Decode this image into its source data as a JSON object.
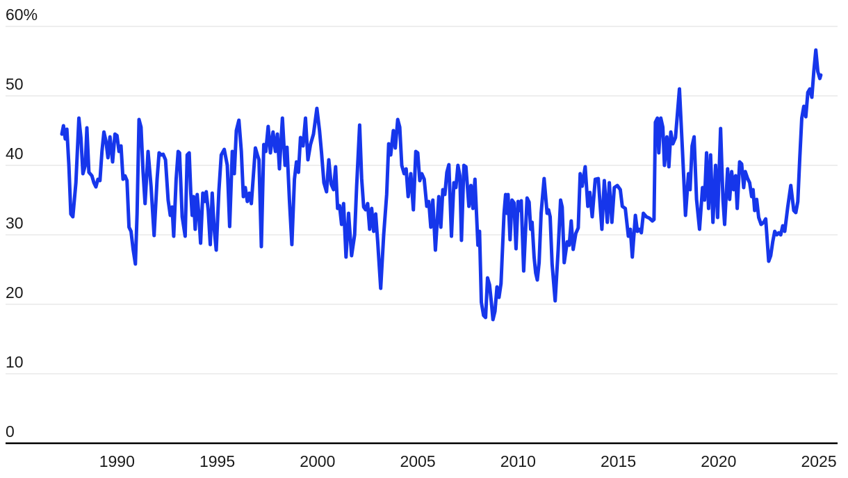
{
  "chart_data": {
    "type": "line",
    "title": "",
    "xlabel": "",
    "ylabel": "",
    "unit": "%",
    "grid": true,
    "legend": false,
    "ylim": [
      0,
      60
    ],
    "y_ticks": [
      0,
      10,
      20,
      30,
      40,
      50,
      60
    ],
    "y_tick_labels": [
      "0",
      "10",
      "20",
      "30",
      "40",
      "50",
      "60%"
    ],
    "x_ticks": [
      1990,
      1995,
      2000,
      2005,
      2010,
      2015,
      2020,
      2025
    ],
    "x_tick_labels": [
      "1990",
      "1995",
      "2000",
      "2005",
      "2010",
      "2015",
      "2020",
      "2025"
    ],
    "colors": {
      "line": "#1636EB",
      "grid": "#E4E4E4",
      "axis": "#000000",
      "labels": "#1A1A1A",
      "background": "#FFFFFF"
    },
    "points": [
      [
        1987.25,
        44.5
      ],
      [
        1987.33,
        45.7
      ],
      [
        1987.42,
        43.8
      ],
      [
        1987.5,
        45.2
      ],
      [
        1987.6,
        40.0
      ],
      [
        1987.7,
        33.0
      ],
      [
        1987.8,
        32.6
      ],
      [
        1987.95,
        37.5
      ],
      [
        1988.1,
        46.8
      ],
      [
        1988.2,
        44.0
      ],
      [
        1988.3,
        38.8
      ],
      [
        1988.42,
        40.0
      ],
      [
        1988.5,
        45.4
      ],
      [
        1988.6,
        39.0
      ],
      [
        1988.75,
        38.5
      ],
      [
        1988.85,
        37.5
      ],
      [
        1988.95,
        36.9
      ],
      [
        1989.05,
        38.0
      ],
      [
        1989.15,
        37.8
      ],
      [
        1989.25,
        42.0
      ],
      [
        1989.35,
        44.8
      ],
      [
        1989.45,
        43.5
      ],
      [
        1989.55,
        41.1
      ],
      [
        1989.65,
        44.1
      ],
      [
        1989.78,
        40.5
      ],
      [
        1989.9,
        44.5
      ],
      [
        1990.0,
        44.3
      ],
      [
        1990.1,
        42.0
      ],
      [
        1990.2,
        42.8
      ],
      [
        1990.3,
        38.0
      ],
      [
        1990.4,
        38.5
      ],
      [
        1990.5,
        37.8
      ],
      [
        1990.6,
        31.1
      ],
      [
        1990.7,
        30.5
      ],
      [
        1990.8,
        28.0
      ],
      [
        1990.92,
        25.8
      ],
      [
        1991.0,
        33.0
      ],
      [
        1991.1,
        46.6
      ],
      [
        1991.2,
        45.5
      ],
      [
        1991.3,
        39.1
      ],
      [
        1991.4,
        34.5
      ],
      [
        1991.55,
        42.0
      ],
      [
        1991.7,
        37.0
      ],
      [
        1991.85,
        29.9
      ],
      [
        1992.0,
        38.0
      ],
      [
        1992.1,
        41.8
      ],
      [
        1992.2,
        41.5
      ],
      [
        1992.3,
        41.6
      ],
      [
        1992.42,
        40.8
      ],
      [
        1992.55,
        35.0
      ],
      [
        1992.66,
        32.8
      ],
      [
        1992.75,
        34.0
      ],
      [
        1992.83,
        29.8
      ],
      [
        1992.95,
        38.0
      ],
      [
        1993.05,
        42.0
      ],
      [
        1993.12,
        41.8
      ],
      [
        1993.25,
        32.6
      ],
      [
        1993.4,
        29.8
      ],
      [
        1993.5,
        41.5
      ],
      [
        1993.6,
        41.8
      ],
      [
        1993.68,
        36.0
      ],
      [
        1993.75,
        32.8
      ],
      [
        1993.82,
        35.5
      ],
      [
        1993.9,
        30.8
      ],
      [
        1994.0,
        35.8
      ],
      [
        1994.08,
        33.0
      ],
      [
        1994.17,
        28.8
      ],
      [
        1994.28,
        36.0
      ],
      [
        1994.38,
        34.8
      ],
      [
        1994.45,
        36.2
      ],
      [
        1994.55,
        33.5
      ],
      [
        1994.65,
        28.6
      ],
      [
        1994.75,
        36.0
      ],
      [
        1994.85,
        30.8
      ],
      [
        1994.95,
        27.8
      ],
      [
        1995.08,
        36.3
      ],
      [
        1995.2,
        41.5
      ],
      [
        1995.35,
        42.3
      ],
      [
        1995.5,
        40.0
      ],
      [
        1995.62,
        31.2
      ],
      [
        1995.75,
        42.0
      ],
      [
        1995.85,
        38.8
      ],
      [
        1995.95,
        45.0
      ],
      [
        1996.08,
        46.5
      ],
      [
        1996.2,
        42.0
      ],
      [
        1996.3,
        35.5
      ],
      [
        1996.4,
        36.8
      ],
      [
        1996.5,
        34.8
      ],
      [
        1996.6,
        36.0
      ],
      [
        1996.7,
        34.5
      ],
      [
        1996.8,
        38.5
      ],
      [
        1996.9,
        42.5
      ],
      [
        1997.0,
        41.5
      ],
      [
        1997.08,
        40.8
      ],
      [
        1997.2,
        28.3
      ],
      [
        1997.32,
        43.0
      ],
      [
        1997.42,
        42.0
      ],
      [
        1997.54,
        45.6
      ],
      [
        1997.65,
        41.8
      ],
      [
        1997.78,
        44.8
      ],
      [
        1997.9,
        42.0
      ],
      [
        1998.0,
        44.5
      ],
      [
        1998.1,
        39.5
      ],
      [
        1998.25,
        46.8
      ],
      [
        1998.38,
        40.0
      ],
      [
        1998.48,
        42.6
      ],
      [
        1998.6,
        35.0
      ],
      [
        1998.72,
        28.6
      ],
      [
        1998.85,
        38.0
      ],
      [
        1998.95,
        40.5
      ],
      [
        1999.05,
        39.0
      ],
      [
        1999.15,
        44.0
      ],
      [
        1999.28,
        42.8
      ],
      [
        1999.4,
        46.8
      ],
      [
        1999.52,
        40.8
      ],
      [
        1999.65,
        43.0
      ],
      [
        1999.8,
        44.5
      ],
      [
        1999.97,
        48.2
      ],
      [
        2000.1,
        45.0
      ],
      [
        2000.2,
        41.8
      ],
      [
        2000.32,
        37.5
      ],
      [
        2000.45,
        36.2
      ],
      [
        2000.56,
        40.8
      ],
      [
        2000.68,
        37.3
      ],
      [
        2000.8,
        36.5
      ],
      [
        2000.9,
        39.8
      ],
      [
        2001.0,
        33.8
      ],
      [
        2001.1,
        34.2
      ],
      [
        2001.2,
        31.5
      ],
      [
        2001.3,
        34.5
      ],
      [
        2001.42,
        26.8
      ],
      [
        2001.55,
        33.1
      ],
      [
        2001.7,
        27.0
      ],
      [
        2001.85,
        30.0
      ],
      [
        2001.95,
        37.0
      ],
      [
        2002.1,
        45.8
      ],
      [
        2002.2,
        38.1
      ],
      [
        2002.3,
        34.0
      ],
      [
        2002.4,
        33.6
      ],
      [
        2002.5,
        34.5
      ],
      [
        2002.6,
        30.8
      ],
      [
        2002.7,
        33.8
      ],
      [
        2002.8,
        30.5
      ],
      [
        2002.9,
        33.0
      ],
      [
        2003.0,
        29.0
      ],
      [
        2003.15,
        22.3
      ],
      [
        2003.3,
        30.0
      ],
      [
        2003.45,
        35.8
      ],
      [
        2003.55,
        43.1
      ],
      [
        2003.65,
        41.5
      ],
      [
        2003.78,
        45.0
      ],
      [
        2003.88,
        42.5
      ],
      [
        2004.0,
        46.6
      ],
      [
        2004.1,
        45.5
      ],
      [
        2004.2,
        40.0
      ],
      [
        2004.32,
        38.8
      ],
      [
        2004.42,
        39.5
      ],
      [
        2004.52,
        35.5
      ],
      [
        2004.65,
        38.8
      ],
      [
        2004.78,
        33.6
      ],
      [
        2004.9,
        42.0
      ],
      [
        2005.0,
        41.8
      ],
      [
        2005.1,
        37.8
      ],
      [
        2005.2,
        38.8
      ],
      [
        2005.32,
        38.0
      ],
      [
        2005.45,
        34.1
      ],
      [
        2005.55,
        34.8
      ],
      [
        2005.65,
        31.1
      ],
      [
        2005.75,
        35.0
      ],
      [
        2005.88,
        27.8
      ],
      [
        2006.05,
        35.5
      ],
      [
        2006.15,
        31.1
      ],
      [
        2006.25,
        36.5
      ],
      [
        2006.35,
        35.8
      ],
      [
        2006.45,
        39.0
      ],
      [
        2006.55,
        40.1
      ],
      [
        2006.68,
        29.8
      ],
      [
        2006.8,
        37.5
      ],
      [
        2006.9,
        36.8
      ],
      [
        2007.0,
        40.0
      ],
      [
        2007.1,
        38.5
      ],
      [
        2007.18,
        29.2
      ],
      [
        2007.3,
        40.0
      ],
      [
        2007.4,
        39.8
      ],
      [
        2007.55,
        34.1
      ],
      [
        2007.65,
        37.1
      ],
      [
        2007.75,
        33.8
      ],
      [
        2007.85,
        38.0
      ],
      [
        2008.0,
        28.5
      ],
      [
        2008.08,
        30.5
      ],
      [
        2008.17,
        20.3
      ],
      [
        2008.28,
        18.4
      ],
      [
        2008.38,
        18.1
      ],
      [
        2008.48,
        23.8
      ],
      [
        2008.58,
        22.8
      ],
      [
        2008.68,
        20.0
      ],
      [
        2008.75,
        17.8
      ],
      [
        2008.85,
        19.0
      ],
      [
        2008.95,
        22.5
      ],
      [
        2009.05,
        21.0
      ],
      [
        2009.15,
        23.0
      ],
      [
        2009.3,
        33.0
      ],
      [
        2009.38,
        35.8
      ],
      [
        2009.44,
        33.1
      ],
      [
        2009.5,
        35.8
      ],
      [
        2009.6,
        29.3
      ],
      [
        2009.7,
        35.0
      ],
      [
        2009.8,
        34.6
      ],
      [
        2009.9,
        28.0
      ],
      [
        2010.0,
        34.8
      ],
      [
        2010.08,
        33.5
      ],
      [
        2010.16,
        34.9
      ],
      [
        2010.28,
        24.8
      ],
      [
        2010.45,
        35.3
      ],
      [
        2010.55,
        34.7
      ],
      [
        2010.63,
        30.8
      ],
      [
        2010.7,
        31.8
      ],
      [
        2010.8,
        26.8
      ],
      [
        2010.88,
        24.5
      ],
      [
        2010.96,
        23.5
      ],
      [
        2011.05,
        26.0
      ],
      [
        2011.15,
        33.1
      ],
      [
        2011.3,
        38.1
      ],
      [
        2011.45,
        33.1
      ],
      [
        2011.52,
        33.6
      ],
      [
        2011.6,
        32.6
      ],
      [
        2011.7,
        25.8
      ],
      [
        2011.85,
        20.5
      ],
      [
        2012.0,
        27.8
      ],
      [
        2012.12,
        35.0
      ],
      [
        2012.2,
        34.0
      ],
      [
        2012.3,
        26.0
      ],
      [
        2012.45,
        29.0
      ],
      [
        2012.55,
        28.5
      ],
      [
        2012.65,
        32.0
      ],
      [
        2012.75,
        27.9
      ],
      [
        2012.88,
        30.2
      ],
      [
        2013.0,
        31.0
      ],
      [
        2013.1,
        38.8
      ],
      [
        2013.2,
        37.0
      ],
      [
        2013.35,
        39.8
      ],
      [
        2013.48,
        34.1
      ],
      [
        2013.58,
        36.1
      ],
      [
        2013.7,
        32.6
      ],
      [
        2013.85,
        38.0
      ],
      [
        2014.0,
        38.1
      ],
      [
        2014.1,
        34.0
      ],
      [
        2014.18,
        30.8
      ],
      [
        2014.3,
        37.8
      ],
      [
        2014.45,
        31.8
      ],
      [
        2014.55,
        37.5
      ],
      [
        2014.68,
        31.8
      ],
      [
        2014.8,
        36.8
      ],
      [
        2014.95,
        37.1
      ],
      [
        2015.1,
        36.5
      ],
      [
        2015.2,
        34.1
      ],
      [
        2015.35,
        33.8
      ],
      [
        2015.5,
        29.8
      ],
      [
        2015.6,
        30.8
      ],
      [
        2015.7,
        26.8
      ],
      [
        2015.85,
        32.8
      ],
      [
        2015.95,
        30.5
      ],
      [
        2016.05,
        30.8
      ],
      [
        2016.15,
        30.3
      ],
      [
        2016.25,
        33.1
      ],
      [
        2016.4,
        32.6
      ],
      [
        2016.55,
        32.4
      ],
      [
        2016.7,
        32.0
      ],
      [
        2016.78,
        32.2
      ],
      [
        2016.85,
        46.2
      ],
      [
        2016.95,
        46.8
      ],
      [
        2017.02,
        41.8
      ],
      [
        2017.12,
        46.8
      ],
      [
        2017.22,
        45.5
      ],
      [
        2017.3,
        40.0
      ],
      [
        2017.42,
        44.1
      ],
      [
        2017.52,
        39.8
      ],
      [
        2017.62,
        44.8
      ],
      [
        2017.72,
        43.1
      ],
      [
        2017.85,
        44.0
      ],
      [
        2018.05,
        51.0
      ],
      [
        2018.2,
        42.0
      ],
      [
        2018.35,
        32.8
      ],
      [
        2018.5,
        38.8
      ],
      [
        2018.58,
        36.5
      ],
      [
        2018.68,
        42.8
      ],
      [
        2018.78,
        44.1
      ],
      [
        2018.9,
        35.1
      ],
      [
        2019.05,
        30.8
      ],
      [
        2019.2,
        36.8
      ],
      [
        2019.3,
        35.0
      ],
      [
        2019.4,
        41.8
      ],
      [
        2019.5,
        33.8
      ],
      [
        2019.6,
        41.5
      ],
      [
        2019.72,
        31.8
      ],
      [
        2019.85,
        40.0
      ],
      [
        2019.95,
        32.5
      ],
      [
        2020.1,
        45.3
      ],
      [
        2020.22,
        35.1
      ],
      [
        2020.3,
        31.5
      ],
      [
        2020.45,
        39.5
      ],
      [
        2020.55,
        35.1
      ],
      [
        2020.65,
        39.1
      ],
      [
        2020.75,
        36.5
      ],
      [
        2020.85,
        38.5
      ],
      [
        2020.93,
        33.8
      ],
      [
        2021.05,
        40.5
      ],
      [
        2021.15,
        40.2
      ],
      [
        2021.25,
        36.8
      ],
      [
        2021.33,
        39.1
      ],
      [
        2021.45,
        38.1
      ],
      [
        2021.55,
        37.5
      ],
      [
        2021.65,
        35.5
      ],
      [
        2021.72,
        36.5
      ],
      [
        2021.8,
        33.5
      ],
      [
        2021.9,
        35.1
      ],
      [
        2022.0,
        32.5
      ],
      [
        2022.12,
        31.5
      ],
      [
        2022.25,
        31.8
      ],
      [
        2022.35,
        32.3
      ],
      [
        2022.5,
        26.2
      ],
      [
        2022.6,
        27.0
      ],
      [
        2022.7,
        29.0
      ],
      [
        2022.8,
        30.5
      ],
      [
        2022.9,
        30.0
      ],
      [
        2023.0,
        30.3
      ],
      [
        2023.1,
        30.0
      ],
      [
        2023.2,
        31.3
      ],
      [
        2023.3,
        30.5
      ],
      [
        2023.45,
        34.0
      ],
      [
        2023.6,
        37.1
      ],
      [
        2023.75,
        33.5
      ],
      [
        2023.85,
        33.2
      ],
      [
        2023.95,
        34.8
      ],
      [
        2024.05,
        41.0
      ],
      [
        2024.15,
        46.8
      ],
      [
        2024.25,
        48.5
      ],
      [
        2024.35,
        47.0
      ],
      [
        2024.45,
        50.5
      ],
      [
        2024.55,
        51.0
      ],
      [
        2024.65,
        49.8
      ],
      [
        2024.75,
        53.5
      ],
      [
        2024.85,
        56.6
      ],
      [
        2024.95,
        53.5
      ],
      [
        2025.05,
        52.5
      ],
      [
        2025.1,
        53.0
      ]
    ]
  }
}
